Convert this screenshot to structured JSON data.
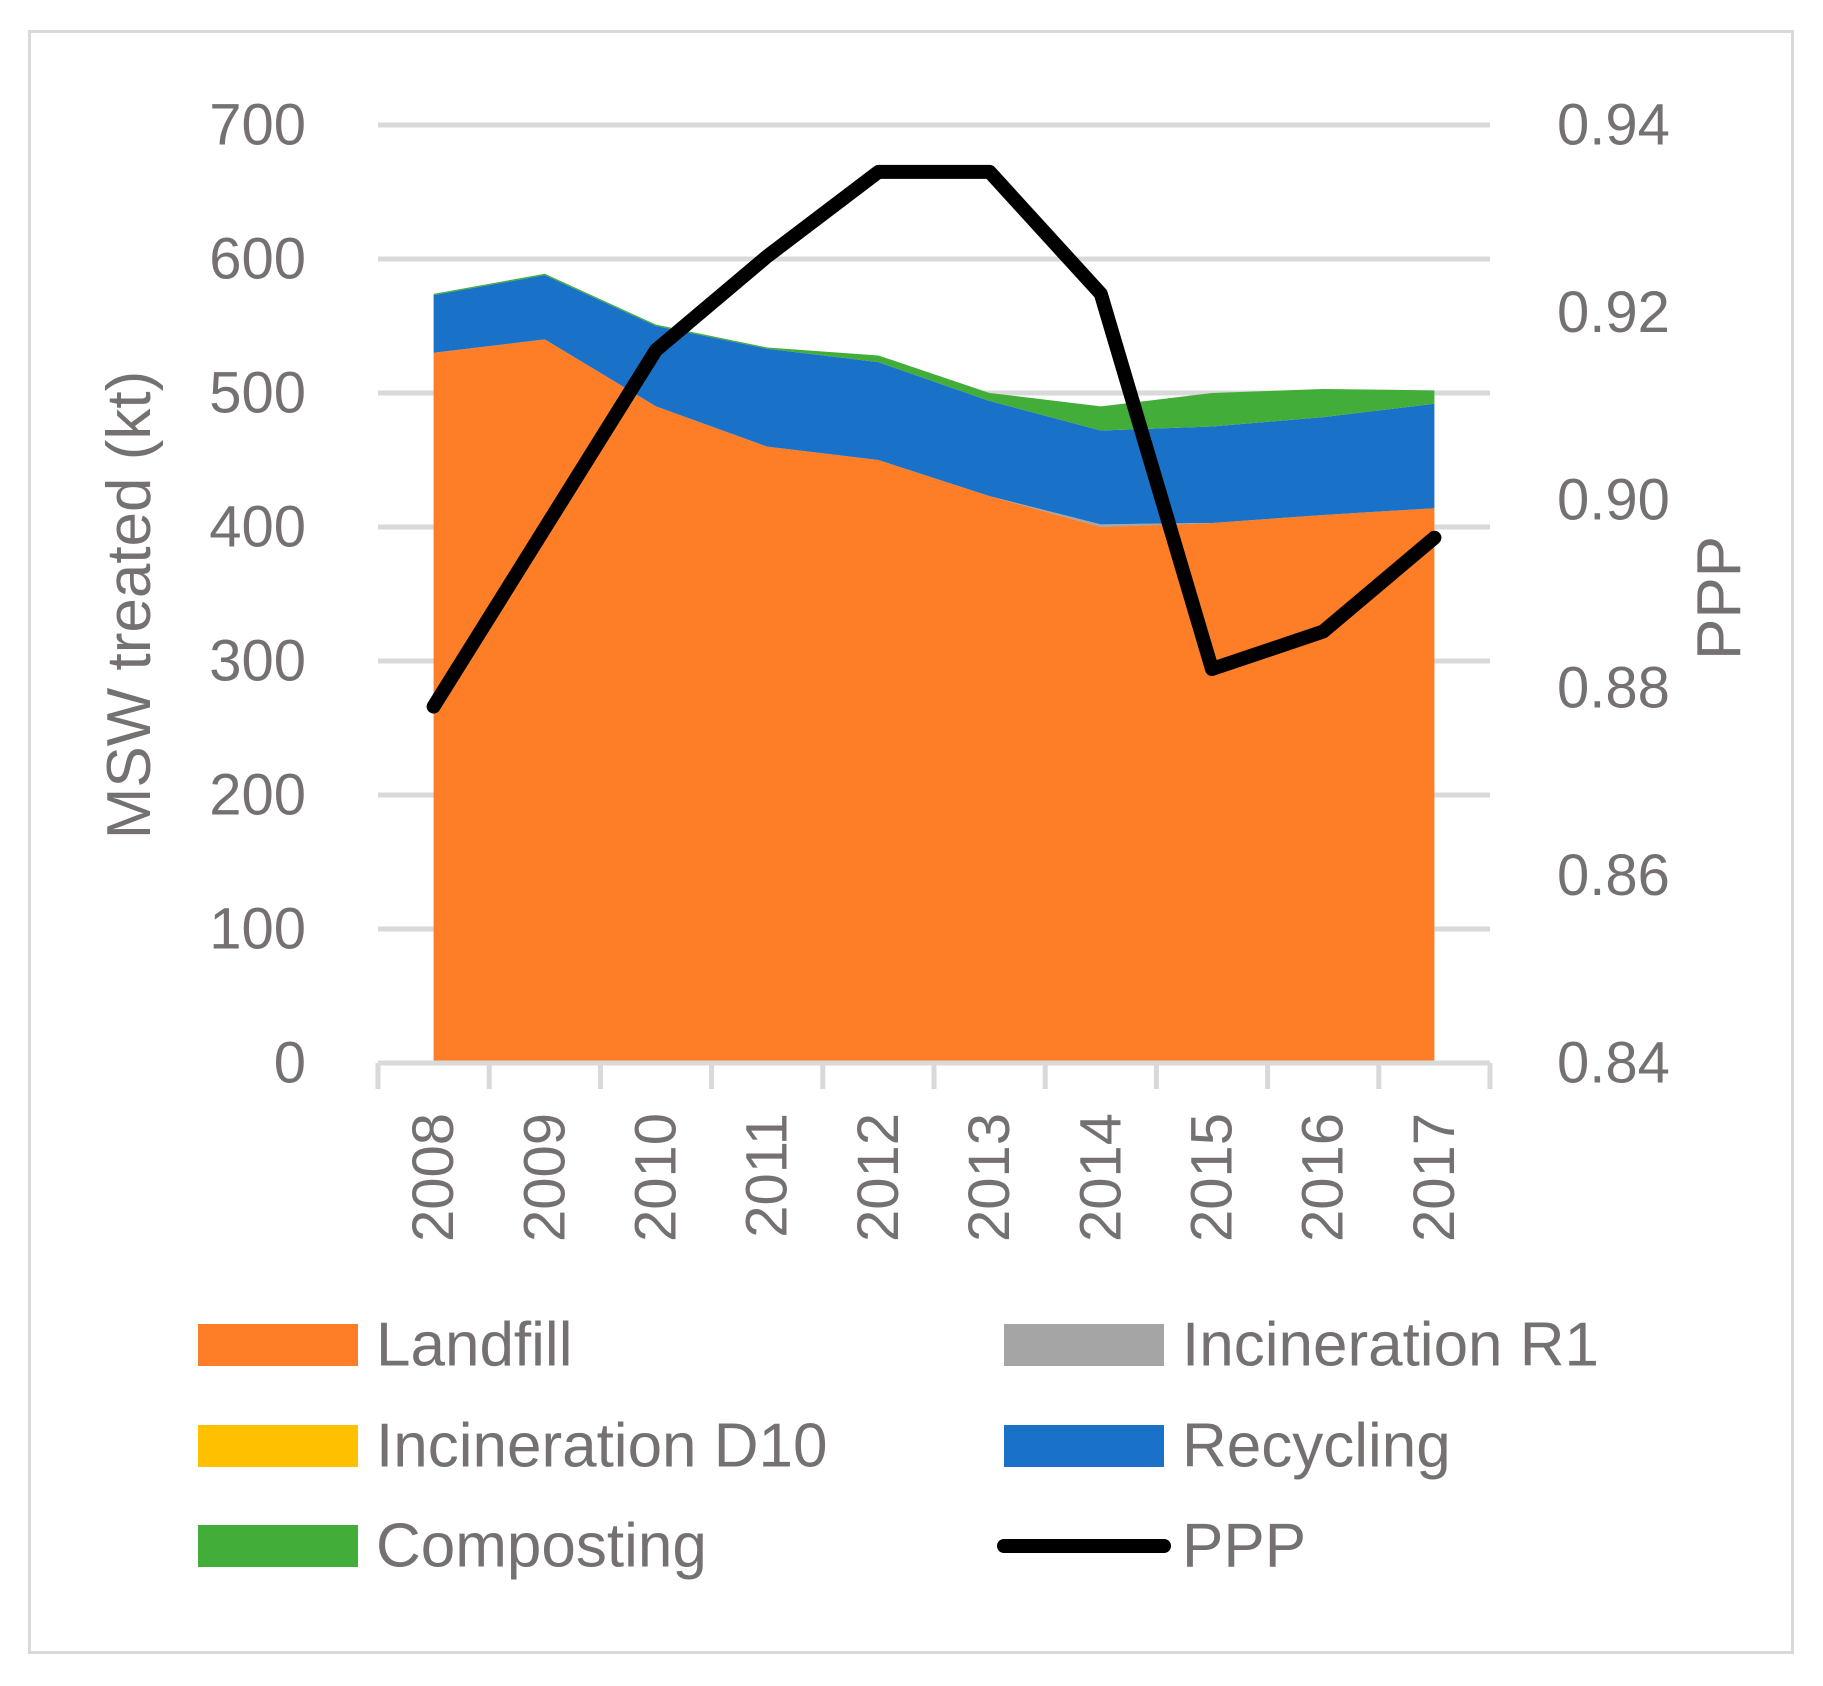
{
  "chart_data": {
    "type": "area",
    "stacked": true,
    "categories": [
      "2008",
      "2009",
      "2010",
      "2011",
      "2012",
      "2013",
      "2014",
      "2015",
      "2016",
      "2017"
    ],
    "series": [
      {
        "name": "Landfill",
        "axis": "left",
        "color": "#fd7e27",
        "values": [
          530,
          540,
          490,
          460,
          450,
          423,
          400,
          403,
          409,
          414
        ]
      },
      {
        "name": "Incineration R1",
        "axis": "left",
        "color": "#a5a5a5",
        "values": [
          0,
          0,
          0,
          0,
          0,
          0,
          2,
          0,
          0,
          0
        ]
      },
      {
        "name": "Incineration D10",
        "axis": "left",
        "color": "#ffc000",
        "values": [
          0,
          0,
          0,
          0,
          0,
          0,
          0,
          0,
          0,
          0
        ]
      },
      {
        "name": "Recycling",
        "axis": "left",
        "color": "#1a72c8",
        "values": [
          43,
          48,
          60,
          73,
          73,
          71,
          70,
          72,
          73,
          78
        ]
      },
      {
        "name": "Composting",
        "axis": "left",
        "color": "#43ad3a",
        "values": [
          1,
          1,
          1,
          1,
          5,
          6,
          18,
          25,
          21,
          10
        ]
      },
      {
        "name": "PPP",
        "axis": "right",
        "type": "line",
        "color": "#000000",
        "values": [
          0.878,
          0.897,
          0.916,
          0.926,
          0.935,
          0.935,
          0.922,
          0.882,
          0.886,
          0.896
        ]
      }
    ],
    "y_left": {
      "label": "MSW treated (kt)",
      "ticks": [
        "0",
        "100",
        "200",
        "300",
        "400",
        "500",
        "600",
        "700"
      ],
      "range": [
        0,
        700
      ]
    },
    "y_right": {
      "label": "PPP",
      "ticks": [
        "0.84",
        "0.86",
        "0.88",
        "0.90",
        "0.92",
        "0.94"
      ],
      "range": [
        0.84,
        0.94
      ]
    },
    "grid": "horizontal",
    "legend_position": "bottom"
  }
}
